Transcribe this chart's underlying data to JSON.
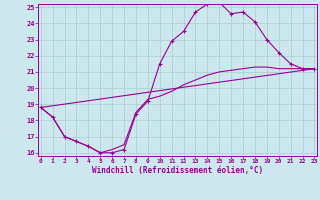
{
  "xlabel": "Windchill (Refroidissement éolien,°C)",
  "bg_color": "#cce8ee",
  "line_color": "#990099",
  "grid_color": "#aacccc",
  "xmin": 0,
  "xmax": 23,
  "ymin": 16,
  "ymax": 25,
  "yticks": [
    16,
    17,
    18,
    19,
    20,
    21,
    22,
    23,
    24,
    25
  ],
  "xticks": [
    0,
    1,
    2,
    3,
    4,
    5,
    6,
    7,
    8,
    9,
    10,
    11,
    12,
    13,
    14,
    15,
    16,
    17,
    18,
    19,
    20,
    21,
    22,
    23
  ],
  "series1_x": [
    0,
    1,
    2,
    3,
    4,
    5,
    6,
    7,
    8,
    9,
    10,
    11,
    12,
    13,
    14,
    15,
    16,
    17,
    18,
    19,
    20,
    21,
    22,
    23
  ],
  "series1_y": [
    18.8,
    18.2,
    17.0,
    16.7,
    16.4,
    16.0,
    16.0,
    16.2,
    18.4,
    19.2,
    21.5,
    22.9,
    23.5,
    24.7,
    25.2,
    25.3,
    24.6,
    24.7,
    24.1,
    23.0,
    22.2,
    21.5,
    21.2,
    21.2
  ],
  "series2_x": [
    0,
    1,
    2,
    3,
    4,
    5,
    6,
    7,
    8,
    9,
    10,
    11,
    12,
    13,
    14,
    15,
    16,
    17,
    18,
    19,
    20,
    21,
    22,
    23
  ],
  "series2_y": [
    18.8,
    18.2,
    17.0,
    16.7,
    16.4,
    16.0,
    16.2,
    16.5,
    18.5,
    19.3,
    19.5,
    19.8,
    20.2,
    20.5,
    20.8,
    21.0,
    21.1,
    21.2,
    21.3,
    21.3,
    21.2,
    21.2,
    21.2,
    21.2
  ],
  "series3_x": [
    0,
    23
  ],
  "series3_y": [
    18.8,
    21.2
  ]
}
